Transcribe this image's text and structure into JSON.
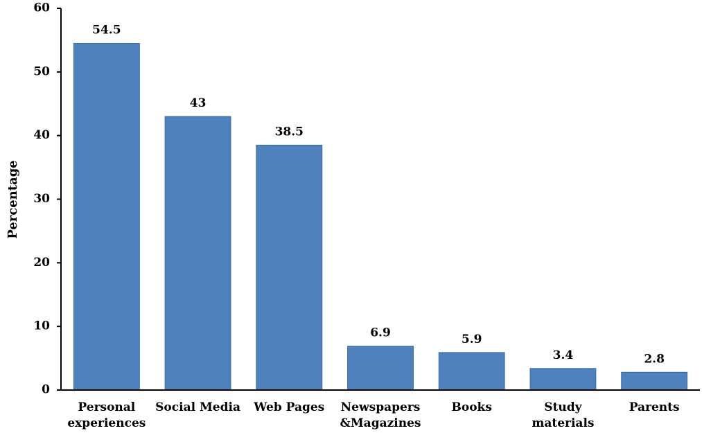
{
  "chart_data": {
    "type": "bar",
    "categories": [
      [
        "Personal",
        "experiences"
      ],
      [
        "Social Media"
      ],
      [
        "Web Pages"
      ],
      [
        "Newspapers",
        "&Magazines"
      ],
      [
        "Books"
      ],
      [
        "Study",
        "materials"
      ],
      [
        "Parents"
      ]
    ],
    "values": [
      54.5,
      43,
      38.5,
      6.9,
      5.9,
      3.4,
      2.8
    ],
    "value_labels": [
      "54.5",
      "43",
      "38.5",
      "6.9",
      "5.9",
      "3.4",
      "2.8"
    ],
    "title": "",
    "xlabel": "",
    "ylabel": "Percentage",
    "ylim": [
      0,
      60
    ],
    "yticks": [
      0,
      10,
      20,
      30,
      40,
      50,
      60
    ],
    "grid": false,
    "legend": "none",
    "colors": {
      "bar": "#4f81bd",
      "bar_edge": "#3a6aa3",
      "axis": "#000000"
    }
  }
}
